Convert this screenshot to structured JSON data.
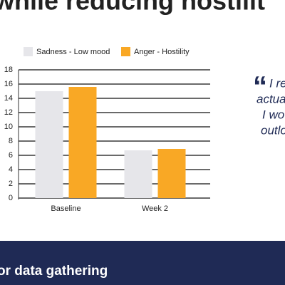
{
  "heading": "while reducing hostilit",
  "quote": {
    "mark": "“",
    "lines": [
      "I re",
      "actua",
      "I wo",
      "outlo"
    ]
  },
  "footer": {
    "title": "or data gathering"
  },
  "chart_data": {
    "type": "bar",
    "categories": [
      "Baseline",
      "Week 2"
    ],
    "series": [
      {
        "name": "Sadness - Low mood",
        "color": "#e6e6ea",
        "values": [
          15,
          6.7
        ]
      },
      {
        "name": "Anger - Hostility",
        "color": "#f9a825",
        "values": [
          15.6,
          6.9
        ]
      }
    ],
    "ylim": [
      0,
      18
    ],
    "yticks": [
      0,
      2,
      4,
      6,
      8,
      10,
      12,
      14,
      16,
      18
    ],
    "grid": true,
    "legend": "top"
  }
}
